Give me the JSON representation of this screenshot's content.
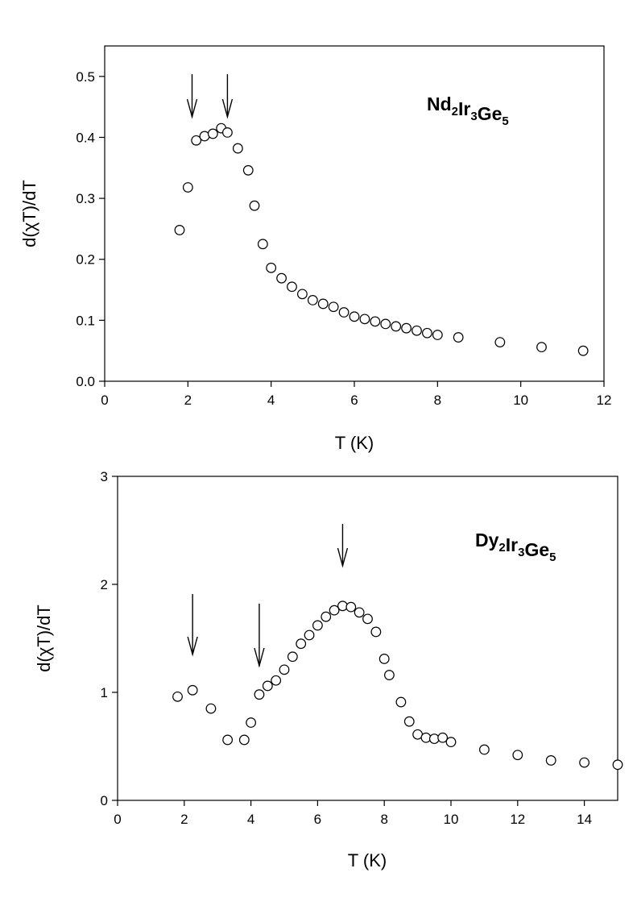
{
  "chart_data": [
    {
      "type": "scatter",
      "compound": {
        "parts": [
          {
            "t": "Nd",
            "sub": false
          },
          {
            "t": "2",
            "sub": true
          },
          {
            "t": "Ir",
            "sub": false
          },
          {
            "t": "3",
            "sub": true
          },
          {
            "t": "Ge",
            "sub": false
          },
          {
            "t": "5",
            "sub": true
          }
        ]
      },
      "xlabel": "T (K)",
      "ylabel": "d(χT)/dT",
      "xlim": [
        0,
        12
      ],
      "ylim": [
        0,
        0.55
      ],
      "xticks": [
        0,
        2,
        4,
        6,
        8,
        10,
        12
      ],
      "yticks": [
        0.0,
        0.1,
        0.2,
        0.3,
        0.4,
        0.5
      ],
      "ytick_labels": [
        "0.0",
        "0.1",
        "0.2",
        "0.3",
        "0.4",
        "0.5"
      ],
      "x": [
        1.8,
        2.0,
        2.2,
        2.4,
        2.6,
        2.8,
        2.95,
        3.2,
        3.45,
        3.6,
        3.8,
        4.0,
        4.25,
        4.5,
        4.75,
        5.0,
        5.25,
        5.5,
        5.75,
        6.0,
        6.25,
        6.5,
        6.75,
        7.0,
        7.25,
        7.5,
        7.75,
        8.0,
        8.5,
        9.5,
        10.5,
        11.5
      ],
      "y": [
        0.248,
        0.318,
        0.395,
        0.402,
        0.406,
        0.415,
        0.408,
        0.382,
        0.346,
        0.288,
        0.225,
        0.186,
        0.169,
        0.155,
        0.143,
        0.133,
        0.127,
        0.122,
        0.113,
        0.106,
        0.102,
        0.098,
        0.094,
        0.09,
        0.087,
        0.083,
        0.079,
        0.076,
        0.072,
        0.064,
        0.056,
        0.05
      ],
      "arrows_at_x": [
        2.1,
        2.95
      ]
    },
    {
      "type": "scatter",
      "compound": {
        "parts": [
          {
            "t": "Dy",
            "sub": false
          },
          {
            "t": "2",
            "sub": true
          },
          {
            "t": "Ir",
            "sub": false
          },
          {
            "t": "3",
            "sub": true
          },
          {
            "t": "Ge",
            "sub": false
          },
          {
            "t": "5",
            "sub": true
          }
        ]
      },
      "xlabel": "T (K)",
      "ylabel": "d(χT)/dT",
      "xlim": [
        0,
        15
      ],
      "ylim": [
        0,
        3
      ],
      "xticks": [
        0,
        2,
        4,
        6,
        8,
        10,
        12,
        14
      ],
      "yticks": [
        0,
        1,
        2,
        3
      ],
      "ytick_labels": [
        "0",
        "1",
        "2",
        "3"
      ],
      "x": [
        1.8,
        2.25,
        2.8,
        3.3,
        3.8,
        4.0,
        4.25,
        4.5,
        4.75,
        5.0,
        5.25,
        5.5,
        5.75,
        6.0,
        6.25,
        6.5,
        6.75,
        7.0,
        7.25,
        7.5,
        7.75,
        8.0,
        8.15,
        8.5,
        8.75,
        9.0,
        9.25,
        9.5,
        9.75,
        10.0,
        11.0,
        12.0,
        13.0,
        14.0,
        15.0
      ],
      "y": [
        0.96,
        1.02,
        0.85,
        0.56,
        0.56,
        0.72,
        0.98,
        1.06,
        1.11,
        1.21,
        1.33,
        1.45,
        1.53,
        1.62,
        1.7,
        1.76,
        1.8,
        1.79,
        1.74,
        1.68,
        1.56,
        1.31,
        1.16,
        0.91,
        0.73,
        0.61,
        0.58,
        0.57,
        0.58,
        0.54,
        0.47,
        0.42,
        0.37,
        0.35,
        0.33
      ],
      "arrows_at_x": [
        2.25,
        4.25,
        6.75
      ]
    }
  ]
}
